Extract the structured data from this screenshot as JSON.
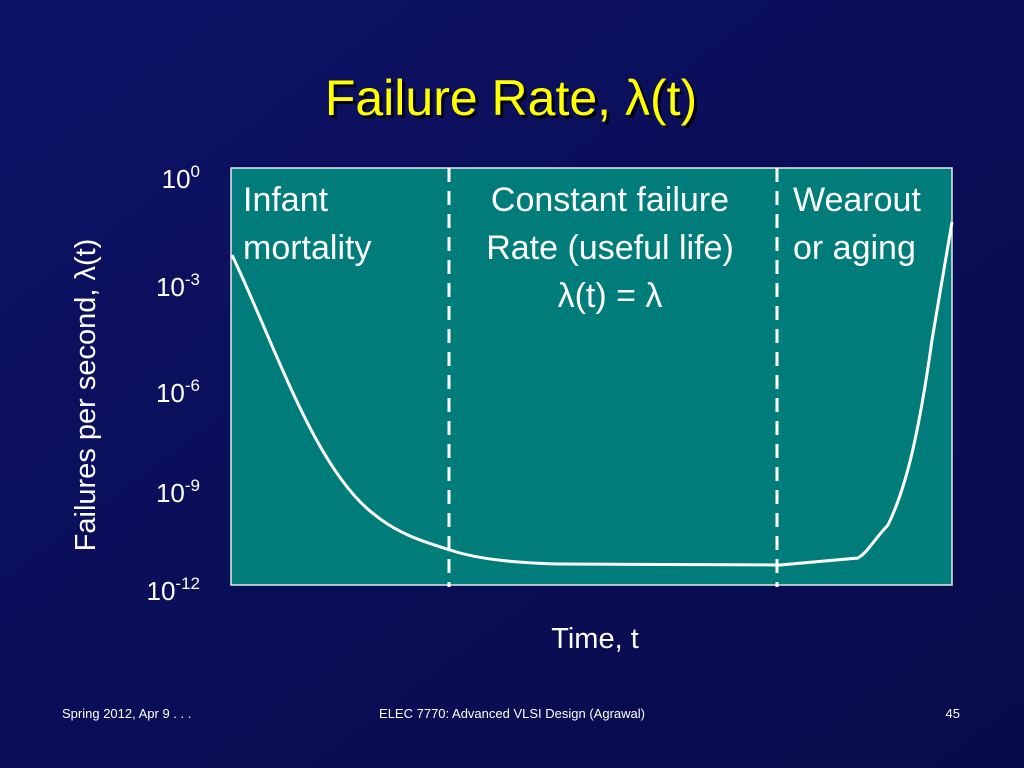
{
  "title": "Failure Rate, λ(t)",
  "diagram": {
    "y_axis_label": "Failures per second, λ(t)",
    "x_axis_label": "Time, t",
    "y_tick_labels": [
      {
        "base": "10",
        "exp": "0"
      },
      {
        "base": "10",
        "exp": "-3"
      },
      {
        "base": "10",
        "exp": "-6"
      },
      {
        "base": "10",
        "exp": "-9"
      },
      {
        "base": "10",
        "exp": "-12"
      }
    ],
    "regions": [
      {
        "lines": [
          "Infant",
          "mortality"
        ]
      },
      {
        "lines": [
          "Constant failure",
          "Rate (useful life)",
          "λ(t) = λ"
        ]
      },
      {
        "lines": [
          "Wearout",
          "or aging"
        ]
      }
    ]
  },
  "footer": {
    "left": "Spring 2012, Apr 9 . . .",
    "center": "ELEC 7770: Advanced VLSI Design (Agrawal)",
    "right": "45"
  }
}
